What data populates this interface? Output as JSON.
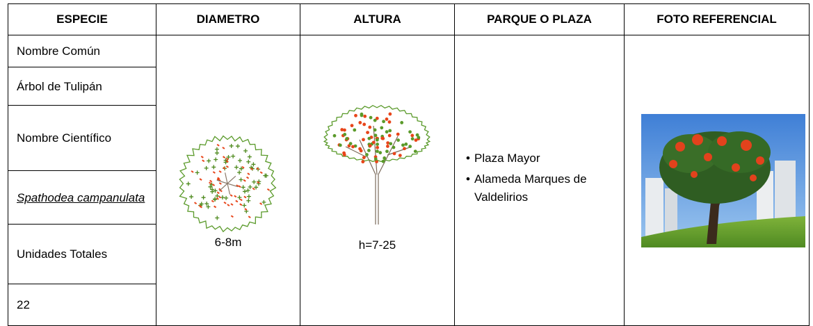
{
  "table": {
    "headers": [
      "ESPECIE",
      "DIAMETRO",
      "ALTURA",
      "PARQUE O PLAZA",
      "FOTO REFERENCIAL"
    ],
    "especie": [
      "Nombre Común",
      "Árbol de Tulipán",
      "Nombre Científico",
      "Spathodea campanulata",
      "Unidades Totales",
      "22"
    ],
    "diametro": "6-8m",
    "altura": "h=7-25",
    "parques": [
      "Plaza Mayor",
      "Alameda Marques de Valdelirios"
    ]
  }
}
